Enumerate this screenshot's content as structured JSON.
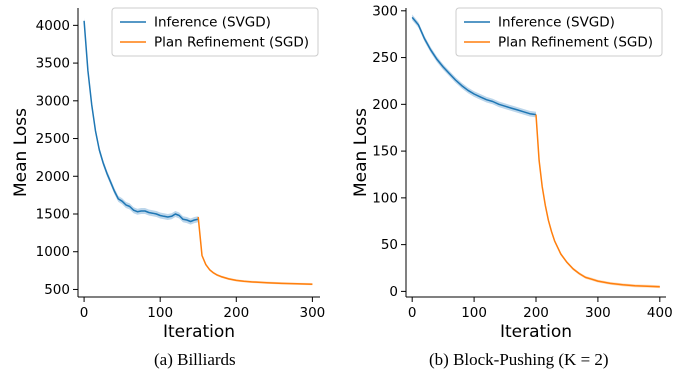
{
  "captions": {
    "a": "(a) Billiards",
    "b": "(b) Block-Pushing (K = 2)"
  },
  "colors": {
    "inference": "#1f77b4",
    "refinement": "#ff7f0e",
    "inference_band": "#a6c8e4",
    "refinement_band": "#ffcf9f"
  },
  "chart_data": [
    {
      "type": "line",
      "xlabel": "Iteration",
      "ylabel": "Mean Loss",
      "xlim": [
        -8,
        310
      ],
      "ylim": [
        400,
        4230
      ],
      "xticks": [
        0,
        100,
        200,
        300
      ],
      "yticks": [
        500,
        1000,
        1500,
        2000,
        2500,
        3000,
        3500,
        4000
      ],
      "legend_position": "top-right",
      "grid": false,
      "series": [
        {
          "name": "Inference (SVGD)",
          "x": [
            0,
            5,
            10,
            15,
            20,
            25,
            30,
            35,
            40,
            45,
            50,
            55,
            60,
            65,
            70,
            75,
            80,
            85,
            90,
            95,
            100,
            105,
            110,
            115,
            120,
            125,
            130,
            135,
            140,
            145,
            150
          ],
          "y": [
            4060,
            3400,
            2950,
            2600,
            2350,
            2180,
            2040,
            1920,
            1800,
            1700,
            1670,
            1620,
            1600,
            1550,
            1530,
            1540,
            1540,
            1520,
            1510,
            1500,
            1480,
            1470,
            1460,
            1470,
            1500,
            1480,
            1430,
            1420,
            1400,
            1420,
            1430
          ],
          "band": 40
        },
        {
          "name": "Plan Refinement (SGD)",
          "x": [
            150,
            155,
            160,
            165,
            170,
            175,
            180,
            190,
            200,
            210,
            220,
            240,
            260,
            280,
            300
          ],
          "y": [
            1460,
            950,
            830,
            760,
            720,
            690,
            670,
            640,
            620,
            608,
            600,
            590,
            580,
            575,
            570
          ],
          "band": 15
        }
      ]
    },
    {
      "type": "line",
      "xlabel": "Iteration",
      "ylabel": "Mean Loss",
      "xlim": [
        -10,
        410
      ],
      "ylim": [
        -6,
        303
      ],
      "xticks": [
        0,
        100,
        200,
        300,
        400
      ],
      "yticks": [
        0,
        50,
        100,
        150,
        200,
        250,
        300
      ],
      "legend_position": "top-right",
      "grid": false,
      "series": [
        {
          "name": "Inference (SVGD)",
          "x": [
            0,
            10,
            20,
            30,
            40,
            50,
            60,
            70,
            80,
            90,
            100,
            110,
            120,
            130,
            140,
            150,
            160,
            170,
            180,
            190,
            200
          ],
          "y": [
            293,
            285,
            270,
            258,
            248,
            240,
            233,
            226,
            220,
            215,
            211,
            208,
            205,
            203,
            200,
            198,
            196,
            194,
            192,
            190,
            189
          ],
          "band": 3
        },
        {
          "name": "Plan Refinement (SGD)",
          "x": [
            200,
            205,
            210,
            215,
            220,
            225,
            230,
            240,
            250,
            260,
            270,
            280,
            290,
            300,
            320,
            340,
            360,
            380,
            400
          ],
          "y": [
            189,
            140,
            112,
            92,
            76,
            64,
            54,
            40,
            31,
            24,
            19,
            15,
            13,
            11,
            8.5,
            7,
            6,
            5.5,
            5
          ],
          "band": 1.5
        }
      ]
    }
  ]
}
